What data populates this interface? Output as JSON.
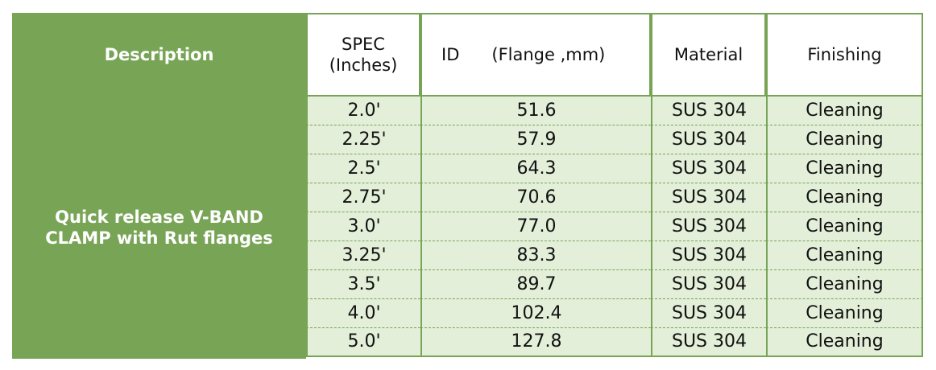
{
  "table": {
    "header": {
      "description": "Description",
      "spec": [
        "SPEC",
        "(Inches)"
      ],
      "id": [
        "ID",
        "(Flange ,mm)"
      ],
      "material": "Material",
      "finishing": "Finishing"
    },
    "description": [
      "Quick release V-BAND",
      "CLAMP with Rut flanges"
    ],
    "rows": [
      [
        "2.0'",
        "51.6",
        "SUS 304",
        "Cleaning"
      ],
      [
        "2.25'",
        "57.9",
        "SUS 304",
        "Cleaning"
      ],
      [
        "2.5'",
        "64.3",
        "SUS 304",
        "Cleaning"
      ],
      [
        "2.75'",
        "70.6",
        "SUS 304",
        "Cleaning"
      ],
      [
        "3.0'",
        "77.0",
        "SUS 304",
        "Cleaning"
      ],
      [
        "3.25'",
        "83.3",
        "SUS 304",
        "Cleaning"
      ],
      [
        "3.5'",
        "89.7",
        "SUS 304",
        "Cleaning"
      ],
      [
        "4.0'",
        "102.4",
        "SUS 304",
        "Cleaning"
      ],
      [
        "5.0'",
        "127.8",
        "SUS 304",
        "Cleaning"
      ]
    ]
  }
}
